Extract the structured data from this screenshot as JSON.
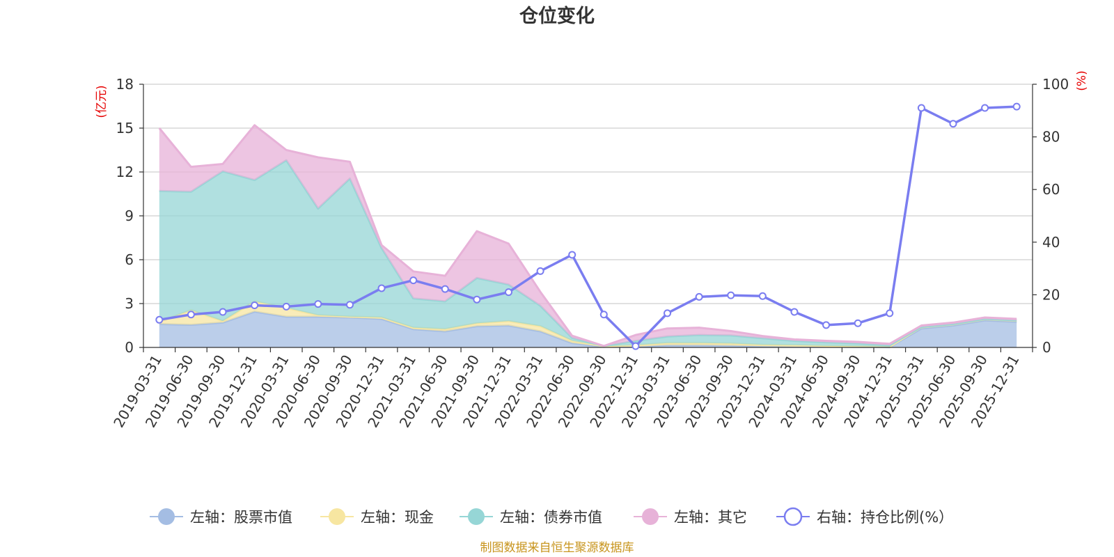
{
  "chart_data": {
    "type": "area",
    "title": "仓位变化",
    "left_unit": "(亿元)",
    "right_unit": "(%)",
    "source": "制图数据来自恒生聚源数据库",
    "x": [
      "2019-03-31",
      "2019-06-30",
      "2019-09-30",
      "2019-12-31",
      "2020-03-31",
      "2020-06-30",
      "2020-09-30",
      "2020-12-31",
      "2021-03-31",
      "2021-06-30",
      "2021-09-30",
      "2021-12-31",
      "2022-03-31",
      "2022-06-30",
      "2022-09-30",
      "2022-12-31",
      "2023-03-31",
      "2023-06-30",
      "2023-09-30",
      "2023-12-31",
      "2024-03-31",
      "2024-06-30",
      "2024-09-30",
      "2024-12-31",
      "2025-03-31",
      "2025-06-30",
      "2025-09-30",
      "2025-12-31"
    ],
    "left_axis": {
      "min": 0,
      "max": 18,
      "ticks": [
        0,
        3,
        6,
        9,
        12,
        15,
        18
      ]
    },
    "right_axis": {
      "min": 0,
      "max": 100,
      "ticks": [
        0,
        20,
        40,
        60,
        80,
        100
      ]
    },
    "grid": true,
    "legend_position": "bottom",
    "series": [
      {
        "name": "左轴：股票市值",
        "axis": "left",
        "kind": "area",
        "color": "#a4bde3",
        "values": [
          1.6,
          1.55,
          1.7,
          2.45,
          2.1,
          2.1,
          2.05,
          1.95,
          1.25,
          1.1,
          1.45,
          1.5,
          1.1,
          0.3,
          0.05,
          0.05,
          0.15,
          0.15,
          0.12,
          0.08,
          0.05,
          0.05,
          0.03,
          0.02,
          1.3,
          1.5,
          1.85,
          1.75
        ]
      },
      {
        "name": "左轴：现金",
        "axis": "left",
        "kind": "area",
        "color": "#f7e6a1",
        "values": [
          0.15,
          1.0,
          0.1,
          0.7,
          0.6,
          0.1,
          0.05,
          0.1,
          0.1,
          0.15,
          0.2,
          0.3,
          0.35,
          0.15,
          0.03,
          0.1,
          0.15,
          0.15,
          0.15,
          0.1,
          0.1,
          0.05,
          0.05,
          0.03,
          0.1,
          0.1,
          0.1,
          0.1
        ]
      },
      {
        "name": "左轴：债券市值",
        "axis": "left",
        "kind": "area",
        "color": "#96d6d6",
        "values": [
          8.95,
          8.1,
          10.25,
          8.3,
          10.1,
          7.3,
          9.45,
          4.75,
          2.0,
          1.9,
          3.1,
          2.5,
          1.4,
          0.2,
          0.02,
          0.3,
          0.45,
          0.55,
          0.55,
          0.45,
          0.3,
          0.25,
          0.2,
          0.1,
          0.0,
          0.0,
          0.0,
          0.0
        ]
      },
      {
        "name": "左轴：其它",
        "axis": "left",
        "kind": "area",
        "color": "#e7b2d8",
        "values": [
          4.3,
          1.7,
          0.5,
          3.75,
          0.7,
          3.5,
          1.15,
          0.2,
          1.85,
          1.75,
          3.2,
          2.8,
          0.95,
          0.15,
          0.0,
          0.4,
          0.55,
          0.5,
          0.3,
          0.15,
          0.1,
          0.1,
          0.1,
          0.1,
          0.1,
          0.1,
          0.1,
          0.1
        ]
      },
      {
        "name": "右轴：持仓比例(%）",
        "axis": "right",
        "kind": "line",
        "color": "#7a7df0",
        "values": [
          10.5,
          12.5,
          13.5,
          16,
          15.5,
          16.5,
          16.2,
          22.5,
          25.5,
          22.2,
          18.2,
          21,
          29,
          35.2,
          12.5,
          0.5,
          13,
          19.2,
          19.8,
          19.5,
          13.5,
          8.5,
          9.2,
          13,
          91,
          85,
          91,
          91.5
        ]
      }
    ]
  }
}
